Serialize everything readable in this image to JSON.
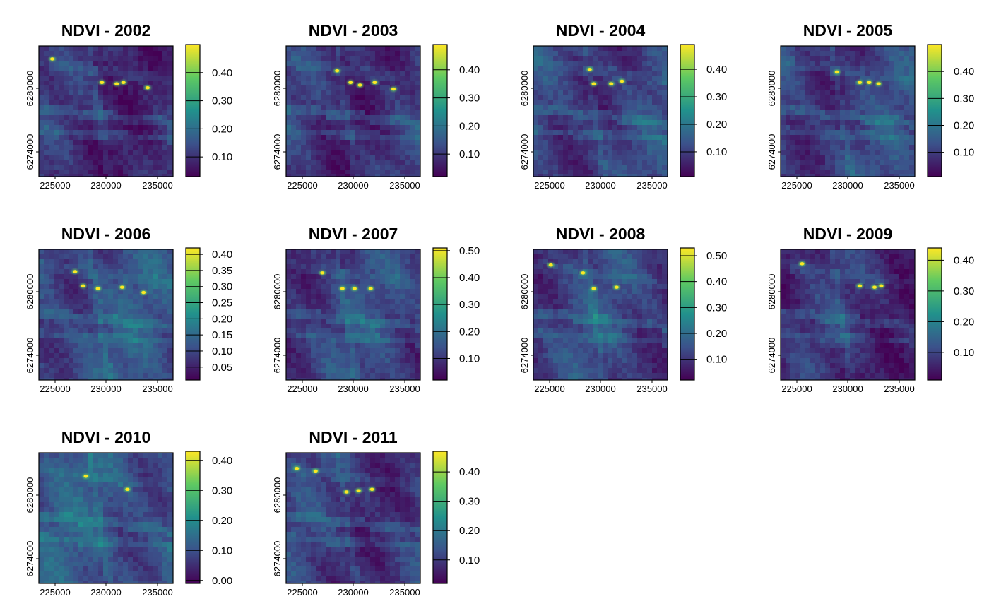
{
  "figure": {
    "layout": "4 columns x 3 rows"
  },
  "colormap": [
    "#440154",
    "#3b528b",
    "#21918c",
    "#5ec962",
    "#fde725"
  ],
  "chart_data": [
    {
      "type": "heatmap",
      "title": "NDVI - 2002",
      "x_ticks": [
        "225000",
        "230000",
        "235000"
      ],
      "y_ticks": [
        "6274000",
        "6280000"
      ],
      "legend_ticks": [
        0.1,
        0.2,
        0.3,
        0.4
      ],
      "legend_labels": [
        "0.10",
        "0.20",
        "0.30",
        "0.40"
      ],
      "value_range": [
        0.03,
        0.5
      ],
      "mean_brightness": 0.26,
      "hotspots": [
        [
          0.1,
          0.1
        ],
        [
          0.63,
          0.28
        ],
        [
          0.47,
          0.28
        ],
        [
          0.58,
          0.29
        ],
        [
          0.81,
          0.32
        ]
      ]
    },
    {
      "type": "heatmap",
      "title": "NDVI - 2003",
      "x_ticks": [
        "225000",
        "230000",
        "235000"
      ],
      "y_ticks": [
        "6274000",
        "6280000"
      ],
      "legend_ticks": [
        0.1,
        0.2,
        0.3,
        0.4
      ],
      "legend_labels": [
        "0.10",
        "0.20",
        "0.30",
        "0.40"
      ],
      "value_range": [
        0.02,
        0.49
      ],
      "mean_brightness": 0.28,
      "hotspots": [
        [
          0.38,
          0.19
        ],
        [
          0.48,
          0.28
        ],
        [
          0.66,
          0.28
        ],
        [
          0.55,
          0.3
        ],
        [
          0.8,
          0.33
        ]
      ]
    },
    {
      "type": "heatmap",
      "title": "NDVI - 2004",
      "x_ticks": [
        "225000",
        "230000",
        "235000"
      ],
      "y_ticks": [
        "6274000",
        "6280000"
      ],
      "legend_ticks": [
        0.1,
        0.2,
        0.3,
        0.4
      ],
      "legend_labels": [
        "0.10",
        "0.20",
        "0.30",
        "0.40"
      ],
      "value_range": [
        0.01,
        0.49
      ],
      "mean_brightness": 0.32,
      "hotspots": [
        [
          0.45,
          0.29
        ],
        [
          0.58,
          0.29
        ],
        [
          0.66,
          0.27
        ],
        [
          0.42,
          0.18
        ]
      ]
    },
    {
      "type": "heatmap",
      "title": "NDVI - 2005",
      "x_ticks": [
        "225000",
        "230000",
        "235000"
      ],
      "y_ticks": [
        "6274000",
        "6280000"
      ],
      "legend_ticks": [
        0.1,
        0.2,
        0.3,
        0.4
      ],
      "legend_labels": [
        "0.10",
        "0.20",
        "0.30",
        "0.40"
      ],
      "value_range": [
        0.01,
        0.5
      ],
      "mean_brightness": 0.32,
      "hotspots": [
        [
          0.42,
          0.2
        ],
        [
          0.59,
          0.28
        ],
        [
          0.73,
          0.29
        ],
        [
          0.66,
          0.28
        ]
      ]
    },
    {
      "type": "heatmap",
      "title": "NDVI - 2006",
      "x_ticks": [
        "225000",
        "230000",
        "235000"
      ],
      "y_ticks": [
        "6274000",
        "6280000"
      ],
      "legend_ticks": [
        0.05,
        0.1,
        0.15,
        0.2,
        0.25,
        0.3,
        0.35,
        0.4
      ],
      "legend_labels": [
        "0.05",
        "0.10",
        "0.15",
        "0.20",
        "0.25",
        "0.30",
        "0.35",
        "0.40"
      ],
      "value_range": [
        0.01,
        0.42
      ],
      "mean_brightness": 0.36,
      "hotspots": [
        [
          0.33,
          0.28
        ],
        [
          0.62,
          0.29
        ],
        [
          0.44,
          0.3
        ],
        [
          0.78,
          0.33
        ],
        [
          0.27,
          0.17
        ]
      ]
    },
    {
      "type": "heatmap",
      "title": "NDVI - 2007",
      "x_ticks": [
        "225000",
        "230000",
        "235000"
      ],
      "y_ticks": [
        "6274000",
        "6280000"
      ],
      "legend_ticks": [
        0.1,
        0.2,
        0.3,
        0.4,
        0.5
      ],
      "legend_labels": [
        "0.10",
        "0.20",
        "0.30",
        "0.40",
        "0.50"
      ],
      "value_range": [
        0.02,
        0.51
      ],
      "mean_brightness": 0.32,
      "hotspots": [
        [
          0.27,
          0.18
        ],
        [
          0.42,
          0.3
        ],
        [
          0.51,
          0.3
        ],
        [
          0.63,
          0.3
        ]
      ]
    },
    {
      "type": "heatmap",
      "title": "NDVI - 2008",
      "x_ticks": [
        "225000",
        "230000",
        "235000"
      ],
      "y_ticks": [
        "6274000",
        "6280000"
      ],
      "legend_ticks": [
        0.1,
        0.2,
        0.3,
        0.4,
        0.5
      ],
      "legend_labels": [
        "0.10",
        "0.20",
        "0.30",
        "0.40",
        "0.50"
      ],
      "value_range": [
        0.02,
        0.53
      ],
      "mean_brightness": 0.32,
      "hotspots": [
        [
          0.45,
          0.3
        ],
        [
          0.62,
          0.29
        ],
        [
          0.37,
          0.18
        ],
        [
          0.13,
          0.12
        ]
      ]
    },
    {
      "type": "heatmap",
      "title": "NDVI - 2009",
      "x_ticks": [
        "225000",
        "230000",
        "235000"
      ],
      "y_ticks": [
        "6274000",
        "6280000"
      ],
      "legend_ticks": [
        0.1,
        0.2,
        0.3,
        0.4
      ],
      "legend_labels": [
        "0.10",
        "0.20",
        "0.30",
        "0.40"
      ],
      "value_range": [
        0.01,
        0.44
      ],
      "mean_brightness": 0.26,
      "hotspots": [
        [
          0.59,
          0.28
        ],
        [
          0.75,
          0.28
        ],
        [
          0.7,
          0.29
        ],
        [
          0.16,
          0.11
        ]
      ]
    },
    {
      "type": "heatmap",
      "title": "NDVI - 2010",
      "x_ticks": [
        "225000",
        "230000",
        "235000"
      ],
      "y_ticks": [
        "6274000",
        "6280000"
      ],
      "legend_ticks": [
        0.0,
        0.1,
        0.2,
        0.3,
        0.4
      ],
      "legend_labels": [
        "0.00",
        "0.10",
        "0.20",
        "0.30",
        "0.40"
      ],
      "value_range": [
        -0.01,
        0.43
      ],
      "mean_brightness": 0.38,
      "hotspots": [
        [
          0.66,
          0.28
        ],
        [
          0.35,
          0.18
        ]
      ]
    },
    {
      "type": "heatmap",
      "title": "NDVI - 2011",
      "x_ticks": [
        "225000",
        "230000",
        "235000"
      ],
      "y_ticks": [
        "6274000",
        "6280000"
      ],
      "legend_ticks": [
        0.1,
        0.2,
        0.3,
        0.4
      ],
      "legend_labels": [
        "0.10",
        "0.20",
        "0.30",
        "0.40"
      ],
      "value_range": [
        0.02,
        0.47
      ],
      "mean_brightness": 0.3,
      "hotspots": [
        [
          0.08,
          0.12
        ],
        [
          0.22,
          0.14
        ],
        [
          0.45,
          0.3
        ],
        [
          0.64,
          0.28
        ],
        [
          0.54,
          0.29
        ]
      ]
    }
  ]
}
